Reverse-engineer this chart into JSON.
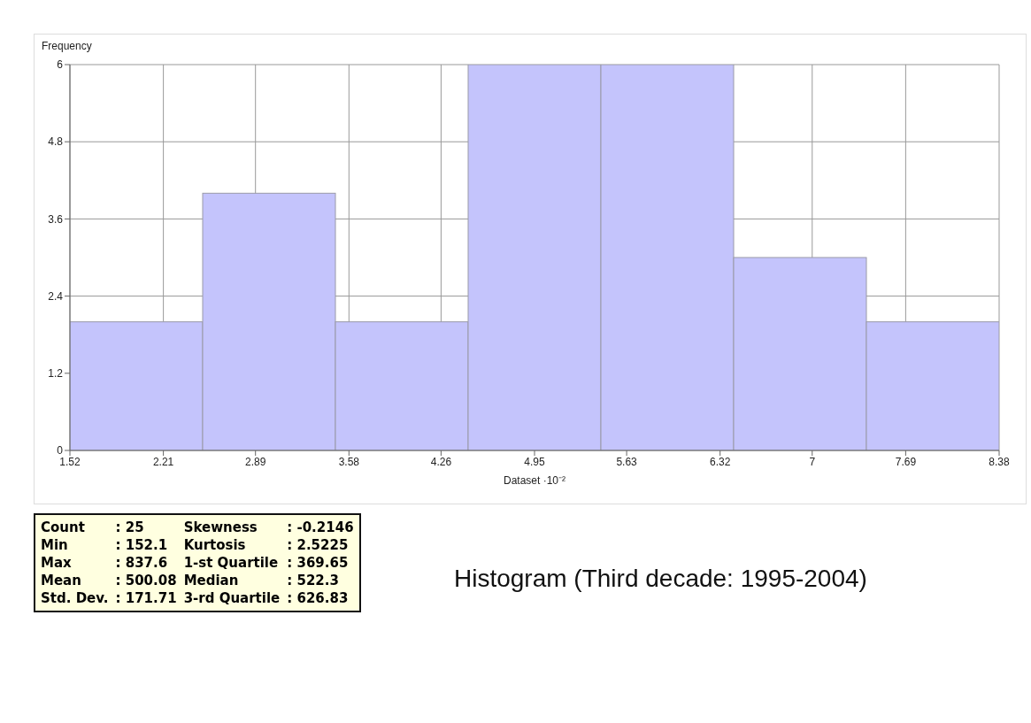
{
  "chart_data": {
    "type": "histogram",
    "title": "Histogram (Third decade: 1995-2004)",
    "xlabel": "Dataset ·10⁻²",
    "ylabel": "Frequency",
    "bins": [
      1.52,
      2.5,
      3.48,
      4.46,
      5.44,
      6.42,
      7.4,
      8.38
    ],
    "values": [
      2,
      4,
      2,
      6,
      6,
      3,
      2
    ],
    "color": "#c4c4fc",
    "xlim": [
      1.52,
      8.38
    ],
    "xticks": [
      1.52,
      2.21,
      2.89,
      3.58,
      4.26,
      4.95,
      5.63,
      6.32,
      7,
      7.69,
      8.38
    ],
    "ylim": [
      0,
      6
    ],
    "yticks": [
      0,
      1.2,
      2.4,
      3.6,
      4.8,
      6
    ],
    "grid": true,
    "annotations": [
      "Count",
      ": 25",
      "Skewness",
      ": -0.2146",
      "Min",
      ": 152.1",
      "Kurtosis",
      ": 2.5225",
      "Max",
      ": 837.6",
      "1-st Quartile",
      ": 369.65",
      "Mean",
      ": 500.08",
      "Median",
      ": 522.3",
      "Std. Dev.",
      ": 171.71",
      "3-rd Quartile",
      ": 626.83"
    ]
  }
}
